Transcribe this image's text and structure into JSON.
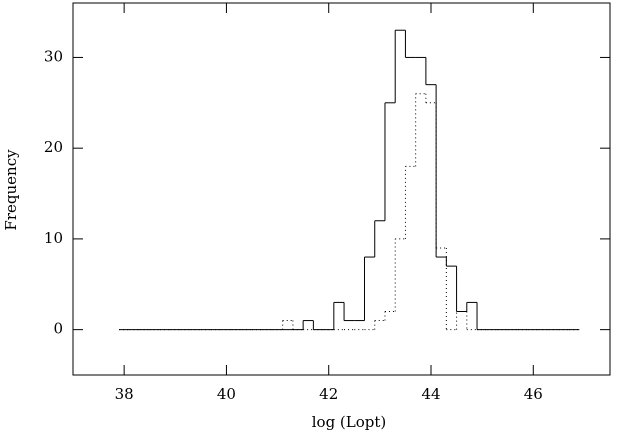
{
  "chart_data": {
    "type": "histogram",
    "x_label": "log (Lopt)",
    "y_label": "Frequency",
    "bins": [
      37.9,
      38.1,
      38.3,
      38.5,
      38.7,
      38.9,
      39.1,
      39.3,
      39.5,
      39.7,
      39.9,
      40.1,
      40.3,
      40.5,
      40.7,
      40.9,
      41.1,
      41.3,
      41.5,
      41.7,
      41.9,
      42.1,
      42.3,
      42.5,
      42.7,
      42.9,
      43.1,
      43.3,
      43.5,
      43.7,
      43.9,
      44.1,
      44.3,
      44.5,
      44.7,
      44.9,
      45.1,
      45.3,
      45.5,
      45.7,
      45.9,
      46.1,
      46.3,
      46.5,
      46.7,
      46.9
    ],
    "series": [
      {
        "color": "#000000",
        "dash": "solid",
        "values": [
          0,
          0,
          0,
          0,
          0,
          0,
          0,
          0,
          0,
          0,
          0,
          0,
          0,
          0,
          0,
          0,
          0,
          0,
          1,
          0,
          0,
          3,
          1,
          1,
          8,
          12,
          25,
          33,
          30,
          30,
          27,
          8,
          7,
          2,
          3,
          0,
          0,
          0,
          0,
          0,
          0,
          0,
          0,
          0,
          0
        ]
      },
      {
        "color": "#000000",
        "dash": "dotted",
        "values": [
          0,
          0,
          0,
          0,
          0,
          0,
          0,
          0,
          0,
          0,
          0,
          0,
          0,
          0,
          0,
          0,
          1,
          0,
          0,
          0,
          0,
          0,
          0,
          0,
          0,
          1,
          2,
          10,
          18,
          26,
          25,
          9,
          0,
          2,
          0,
          0,
          0,
          0,
          0,
          0,
          0,
          0,
          0,
          0,
          0
        ]
      }
    ],
    "xlim": [
      37,
      47.5
    ],
    "xticks": [
      38,
      40,
      42,
      44,
      46
    ],
    "ylim": [
      -5,
      36
    ],
    "yticks": [
      0,
      10,
      20,
      30
    ]
  }
}
